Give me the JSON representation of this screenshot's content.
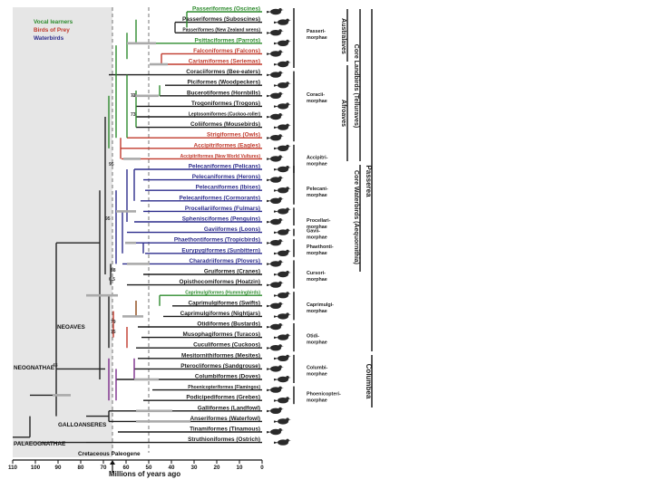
{
  "legend": [
    {
      "label": "Vocal learners",
      "color": "#2e8b2e"
    },
    {
      "label": "Birds of Prey",
      "color": "#c0392b"
    },
    {
      "label": "Waterbirds",
      "color": "#2c2c8c"
    }
  ],
  "taxa": [
    {
      "label": "Passeriformes (Oscines)",
      "color": "#2e8b2e",
      "group": "vocal"
    },
    {
      "label": "Passeriformes (Suboscines)",
      "color": "#1a1a1a",
      "group": "other"
    },
    {
      "label": "Passeriformes (New Zealand wrens)",
      "color": "#1a1a1a",
      "group": "other"
    },
    {
      "label": "Psittaciformes (Parrots)",
      "color": "#2e8b2e",
      "group": "vocal"
    },
    {
      "label": "Falconiformes (Falcons)",
      "color": "#c0392b",
      "group": "prey"
    },
    {
      "label": "Cariamiformes (Seriemas)",
      "color": "#c0392b",
      "group": "prey"
    },
    {
      "label": "Coraciiformes (Bee-eaters)",
      "color": "#1a1a1a",
      "group": "other"
    },
    {
      "label": "Piciformes (Woodpeckers)",
      "color": "#1a1a1a",
      "group": "other"
    },
    {
      "label": "Bucerotiformes (Hornbills)",
      "color": "#1a1a1a",
      "group": "other"
    },
    {
      "label": "Trogoniformes (Trogons)",
      "color": "#1a1a1a",
      "group": "other"
    },
    {
      "label": "Leptosomiformes (Cuckoo-roller)",
      "color": "#1a1a1a",
      "group": "other"
    },
    {
      "label": "Coliiformes (Mousebirds)",
      "color": "#1a1a1a",
      "group": "other"
    },
    {
      "label": "Strigiformes (Owls)",
      "color": "#c0392b",
      "group": "prey"
    },
    {
      "label": "Accipitriformes (Eagles)",
      "color": "#c0392b",
      "group": "prey"
    },
    {
      "label": "Accipitriformes (New World Vultures)",
      "color": "#c0392b",
      "group": "prey"
    },
    {
      "label": "Pelecaniformes (Pelicans)",
      "color": "#2c2c8c",
      "group": "water"
    },
    {
      "label": "Pelecaniformes (Herons)",
      "color": "#2c2c8c",
      "group": "water"
    },
    {
      "label": "Pelecaniformes (Ibises)",
      "color": "#2c2c8c",
      "group": "water"
    },
    {
      "label": "Pelecaniformes (Cormorants)",
      "color": "#2c2c8c",
      "group": "water"
    },
    {
      "label": "Procellariiformes (Fulmars)",
      "color": "#2c2c8c",
      "group": "water"
    },
    {
      "label": "Sphenisciformes (Penguins)",
      "color": "#2c2c8c",
      "group": "water"
    },
    {
      "label": "Gaviiformes (Loons)",
      "color": "#2c2c8c",
      "group": "water"
    },
    {
      "label": "Phaethontiformes (Tropicbirds)",
      "color": "#2c2c8c",
      "group": "water"
    },
    {
      "label": "Eurypygiformes (Sunbittern)",
      "color": "#2c2c8c",
      "group": "water"
    },
    {
      "label": "Charadriiformes (Plovers)",
      "color": "#2c2c8c",
      "group": "water"
    },
    {
      "label": "Gruiformes (Cranes)",
      "color": "#1a1a1a",
      "group": "other"
    },
    {
      "label": "Opisthocomiformes (Hoatzin)",
      "color": "#1a1a1a",
      "group": "other"
    },
    {
      "label": "Caprimulgiformes (Hummingbirds)",
      "color": "#2e8b2e",
      "group": "vocal"
    },
    {
      "label": "Caprimulgiformes (Swifts)",
      "color": "#1a1a1a",
      "group": "other"
    },
    {
      "label": "Caprimulgiformes (Nightjars)",
      "color": "#1a1a1a",
      "group": "other"
    },
    {
      "label": "Otidiformes (Bustards)",
      "color": "#1a1a1a",
      "group": "other"
    },
    {
      "label": "Musophagiformes (Turacos)",
      "color": "#1a1a1a",
      "group": "other"
    },
    {
      "label": "Cuculiformes (Cuckoos)",
      "color": "#1a1a1a",
      "group": "other"
    },
    {
      "label": "Mesitornithiformes (Mesites)",
      "color": "#1a1a1a",
      "group": "other"
    },
    {
      "label": "Pterocliformes (Sandgrouse)",
      "color": "#1a1a1a",
      "group": "other"
    },
    {
      "label": "Columbiformes (Doves)",
      "color": "#1a1a1a",
      "group": "other"
    },
    {
      "label": "Phoenicopteriformes (Flamingos)",
      "color": "#1a1a1a",
      "group": "other"
    },
    {
      "label": "Podicipediformes (Grebes)",
      "color": "#1a1a1a",
      "group": "other"
    },
    {
      "label": "Galliformes (Landfowl)",
      "color": "#1a1a1a",
      "group": "other"
    },
    {
      "label": "Anseriformes (Waterfowl)",
      "color": "#1a1a1a",
      "group": "other"
    },
    {
      "label": "Tinamiformes (Tinamous)",
      "color": "#1a1a1a",
      "group": "other"
    },
    {
      "label": "Struthioniformes (Ostrich)",
      "color": "#1a1a1a",
      "group": "other"
    }
  ],
  "morphae": [
    "Passeri-\nmorphae",
    "Coracii-\nmorphae",
    "Accipitri-\nmorphae",
    "Pelecani-\nmorphae",
    "Procellari-\nmorphae",
    "Gavii-\nmorphae",
    "Phaethonti-\nmorphae",
    "Cursori-\nmorphae",
    "Caprimulgi-\nmorphae",
    "Otidi-\nmorphae",
    "Columbi-\nmorphae",
    "Phoenicopteri-\nmorphae"
  ],
  "clades": {
    "australaves": "Australaves",
    "afroaves": "Afroaves",
    "core_landbirds": "Core Landbirds (Telluraves)",
    "core_waterbirds": "Core Waterbirds (Aequornithia)",
    "passerea": "Passerea",
    "columbea": "Columbea"
  },
  "nodes": {
    "neoaves": "NEOAVES",
    "neognathae": "NEOGNATHAE",
    "galloanseres": "GALLOANSERES",
    "palaeognathae": "PALAEOGNATHAE",
    "kpg": "Cretaceous Paleogene"
  },
  "support_labels": [
    "73",
    "73",
    "95",
    "95",
    "88",
    "0.5",
    "79",
    "75",
    "43"
  ],
  "axis": {
    "label": "Millions of years ago",
    "ticks": [
      "110",
      "100",
      "90",
      "80",
      "70",
      "60",
      "50",
      "40",
      "30",
      "20",
      "10",
      "0"
    ]
  },
  "icons": [
    "bird-silhouette-icon"
  ]
}
